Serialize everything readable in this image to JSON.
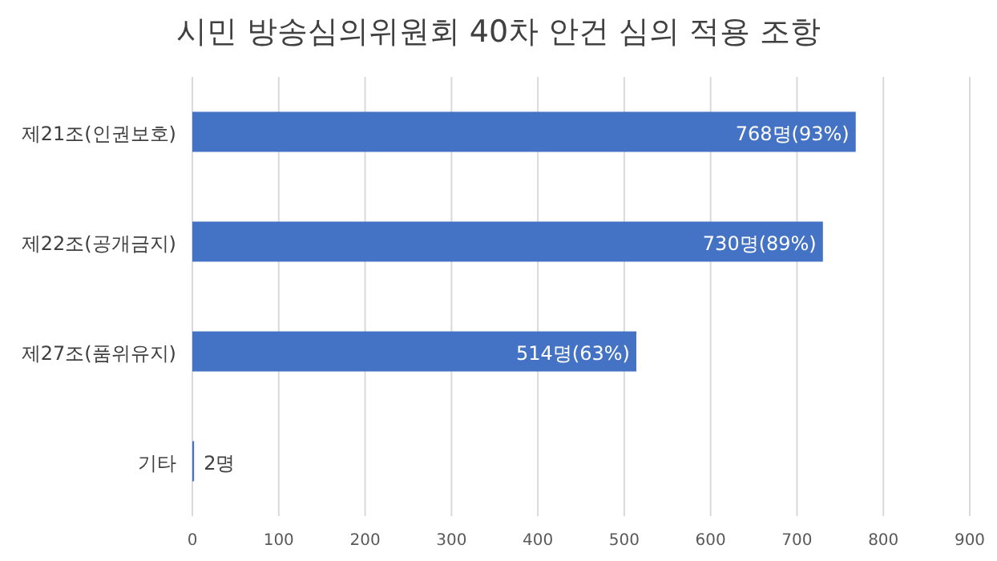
{
  "chart_data": {
    "type": "bar",
    "orientation": "horizontal",
    "title": "시민 방송심의위원회 40차 안건 심의 적용 조항",
    "categories": [
      "제21조(인권보호)",
      "제22조(공개금지)",
      "제27조(품위유지)",
      "기타"
    ],
    "values": [
      768,
      730,
      514,
      2
    ],
    "value_labels": [
      "768명(93%)",
      "730명(89%)",
      "514명(63%)",
      "2명"
    ],
    "color": "#4472c4",
    "xlim": [
      0,
      900
    ],
    "xticks": [
      0,
      100,
      200,
      300,
      400,
      500,
      600,
      700,
      800,
      900
    ],
    "grid": "x"
  }
}
